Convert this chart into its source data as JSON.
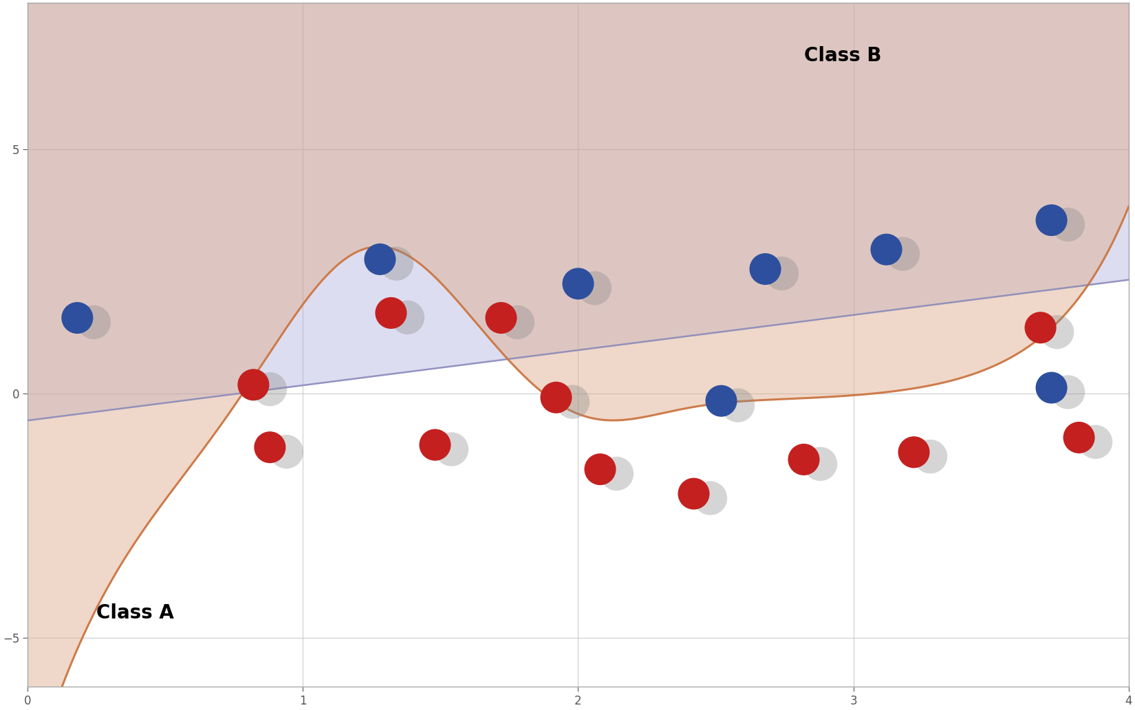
{
  "xlim": [
    0,
    4
  ],
  "ylim": [
    -6,
    8
  ],
  "xticks": [
    0,
    1,
    2,
    3,
    4
  ],
  "yticks": [
    -5,
    0,
    5
  ],
  "bg_color": "#ffffff",
  "grid_color": "#cccccc",
  "linear_color_fill": "#aaaadd",
  "linear_color_line": "#8888bb",
  "linear_alpha": 0.4,
  "wave_color_fill": "#ddaa88",
  "wave_color_line": "#cc7744",
  "wave_fill_alpha": 0.45,
  "class_a_label": "Class A",
  "class_b_label": "Class B",
  "linear_y0": -0.55,
  "linear_slope": 0.72,
  "blue_points": [
    [
      0.18,
      1.55
    ],
    [
      1.28,
      2.75
    ],
    [
      2.0,
      2.25
    ],
    [
      2.68,
      2.55
    ],
    [
      3.12,
      2.95
    ],
    [
      3.72,
      3.55
    ],
    [
      2.52,
      -0.15
    ],
    [
      3.72,
      0.12
    ]
  ],
  "red_points": [
    [
      0.82,
      0.18
    ],
    [
      1.32,
      1.65
    ],
    [
      1.72,
      1.55
    ],
    [
      0.88,
      -1.1
    ],
    [
      1.48,
      -1.05
    ],
    [
      1.92,
      -0.08
    ],
    [
      2.08,
      -1.55
    ],
    [
      2.42,
      -2.05
    ],
    [
      2.82,
      -1.35
    ],
    [
      3.22,
      -1.2
    ],
    [
      3.68,
      1.35
    ],
    [
      3.82,
      -0.9
    ]
  ],
  "point_size": 1100,
  "blue_color": "#2e4f9e",
  "red_color": "#c42020",
  "label_fontsize": 20,
  "label_fontweight": "bold"
}
